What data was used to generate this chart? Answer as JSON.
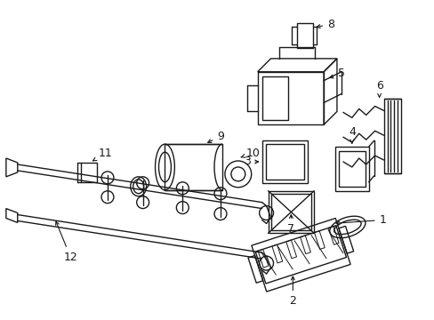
{
  "background": "#ffffff",
  "lc": "#1a1a1a",
  "lw": 1.0,
  "fig_w": 4.89,
  "fig_h": 3.6,
  "label_fs": 9
}
